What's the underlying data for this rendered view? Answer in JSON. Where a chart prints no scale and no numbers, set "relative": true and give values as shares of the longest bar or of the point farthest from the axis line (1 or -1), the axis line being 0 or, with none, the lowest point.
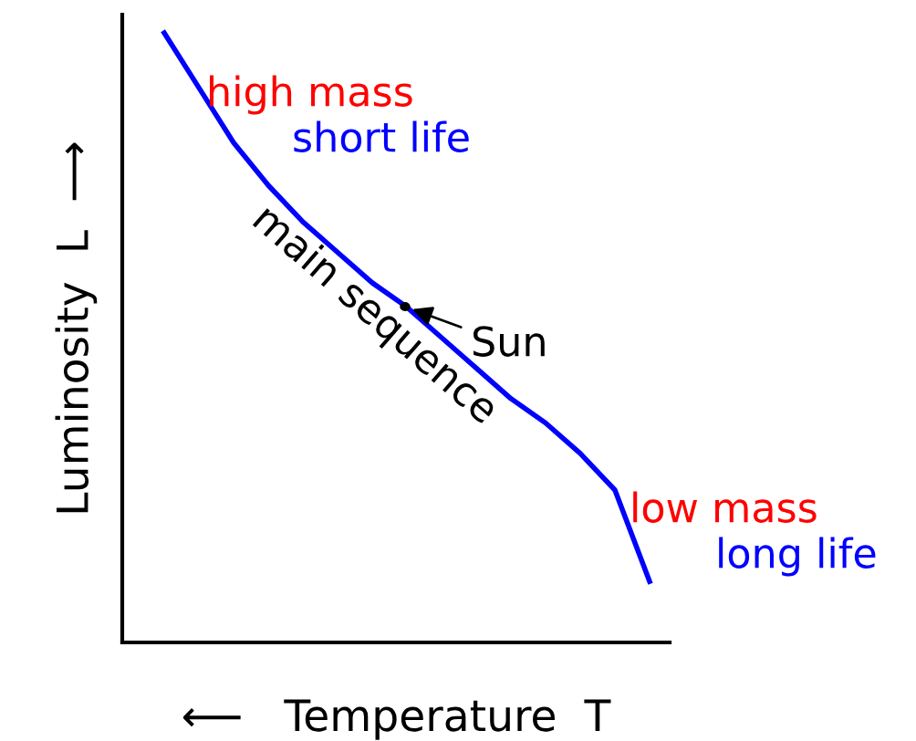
{
  "chart_data": {
    "type": "line",
    "relative": true,
    "xlabel": "⟵   Temperature  T",
    "ylabel": "Luminosity  L  ⟶",
    "categories": [
      null,
      null,
      null,
      null,
      null,
      null,
      null,
      null,
      null,
      null,
      null,
      null,
      null,
      null,
      null
    ],
    "series": [
      {
        "color": "#0000ff",
        "values": [
          1.0,
          0.91,
          0.82,
          0.75,
          0.69,
          0.64,
          0.59,
          0.55,
          0.5,
          0.45,
          0.4,
          0.36,
          0.31,
          0.25,
          0.1
        ]
      }
    ],
    "annotations": [
      "high mass",
      "short life",
      "main sequence",
      "Sun",
      "low mass",
      "long life"
    ],
    "marker": "none",
    "line_style": "solid",
    "legend": false
  }
}
